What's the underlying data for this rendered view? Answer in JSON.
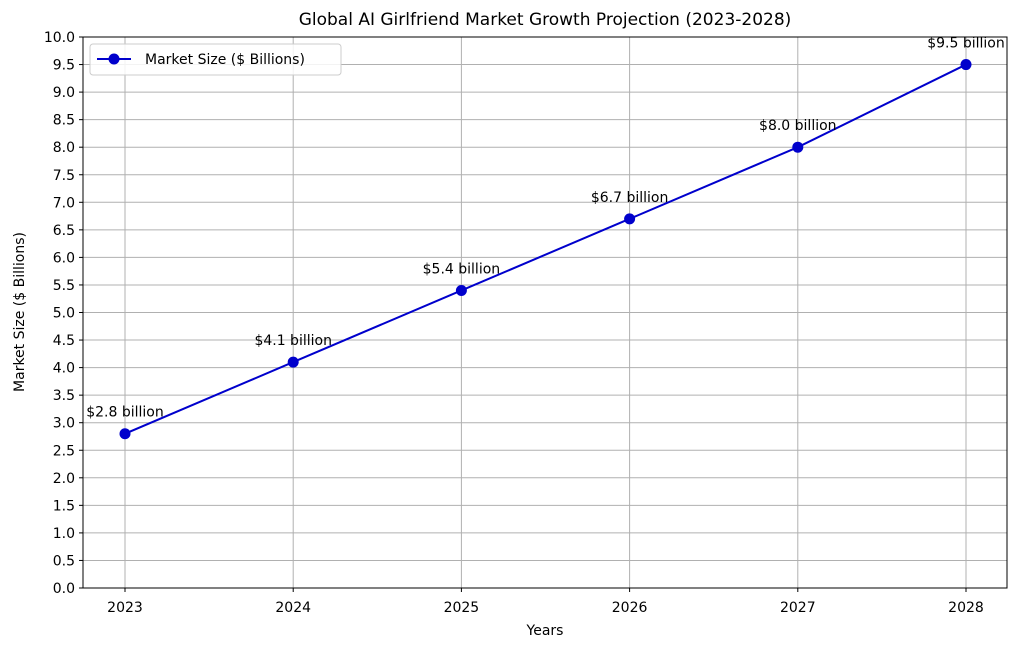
{
  "chart_data": {
    "type": "line",
    "title": "Global AI Girlfriend Market Growth Projection (2023-2028)",
    "xlabel": "Years",
    "ylabel": "Market Size ($ Billions)",
    "x": [
      "2023",
      "2024",
      "2025",
      "2026",
      "2027",
      "2028"
    ],
    "series": [
      {
        "name": "Market Size ($ Billions)",
        "values": [
          2.8,
          4.1,
          5.4,
          6.7,
          8.0,
          9.5
        ],
        "color": "#0000cc",
        "marker": "circle"
      }
    ],
    "data_labels": [
      "$2.8 billion",
      "$4.1 billion",
      "$5.4 billion",
      "$6.7 billion",
      "$8.0 billion",
      "$9.5 billion"
    ],
    "y_ticks": [
      "0.0",
      "0.5",
      "1.0",
      "1.5",
      "2.0",
      "2.5",
      "3.0",
      "3.5",
      "4.0",
      "4.5",
      "5.0",
      "5.5",
      "6.0",
      "6.5",
      "7.0",
      "7.5",
      "8.0",
      "8.5",
      "9.0",
      "9.5",
      "10.0"
    ],
    "ylim": [
      0,
      10
    ],
    "grid": true,
    "legend_position": "upper-left"
  }
}
